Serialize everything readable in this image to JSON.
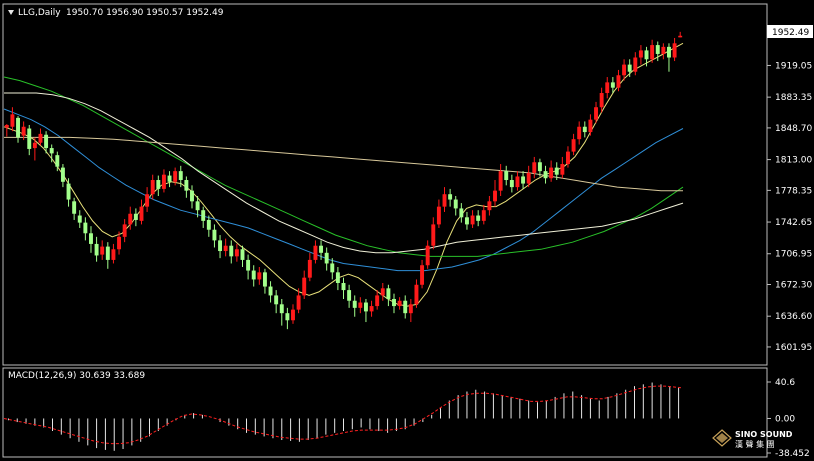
{
  "header": {
    "symbol_label": "LLG,Daily",
    "ohlc": "1950.70 1956.90 1950.57 1952.49"
  },
  "price_axis": {
    "current_price": "1952.49",
    "ticks": [
      "1919.05",
      "1883.35",
      "1848.70",
      "1813.00",
      "1778.35",
      "1742.65",
      "1706.95",
      "1672.30",
      "1636.60",
      "1601.95"
    ]
  },
  "macd_panel": {
    "label": "MACD(12,26,9) 30.639 33.689",
    "ticks": [
      "40.6",
      "0.00",
      "-38.452"
    ]
  },
  "watermark": {
    "line1": "SINO SOUND",
    "line2": "漢 聲 集 團"
  },
  "colors": {
    "bull": "#ff1a1a",
    "bear": "#a3ff8c",
    "ma1": "#e8e07a",
    "ma2": "#2f8fd8",
    "ma3": "#29c029",
    "ma4": "#f0f0d8",
    "ma5": "#d8c89a",
    "macd_hist": "#e6e6e6",
    "macd_signal": "#ff2020"
  },
  "chart_data": {
    "type": "candlestick",
    "title": "LLG,Daily",
    "ylim": [
      1585,
      1968
    ],
    "candles": [
      [
        1849,
        1852,
        1839,
        1853
      ],
      [
        1850,
        1864,
        1845,
        1872
      ],
      [
        1860,
        1838,
        1832,
        1862
      ],
      [
        1840,
        1850,
        1835,
        1856
      ],
      [
        1848,
        1825,
        1818,
        1852
      ],
      [
        1826,
        1832,
        1812,
        1838
      ],
      [
        1832,
        1842,
        1829,
        1848
      ],
      [
        1841,
        1826,
        1820,
        1845
      ],
      [
        1826,
        1820,
        1810,
        1830
      ],
      [
        1818,
        1805,
        1800,
        1822
      ],
      [
        1804,
        1788,
        1782,
        1808
      ],
      [
        1786,
        1768,
        1760,
        1792
      ],
      [
        1766,
        1752,
        1745,
        1770
      ],
      [
        1750,
        1742,
        1736,
        1756
      ],
      [
        1742,
        1730,
        1722,
        1748
      ],
      [
        1730,
        1718,
        1708,
        1738
      ],
      [
        1718,
        1705,
        1698,
        1726
      ],
      [
        1706,
        1715,
        1700,
        1722
      ],
      [
        1715,
        1700,
        1690,
        1720
      ],
      [
        1700,
        1712,
        1696,
        1718
      ],
      [
        1712,
        1726,
        1706,
        1732
      ],
      [
        1726,
        1740,
        1720,
        1746
      ],
      [
        1740,
        1752,
        1734,
        1760
      ],
      [
        1752,
        1745,
        1738,
        1758
      ],
      [
        1744,
        1760,
        1740,
        1768
      ],
      [
        1760,
        1774,
        1754,
        1782
      ],
      [
        1774,
        1790,
        1768,
        1796
      ],
      [
        1790,
        1780,
        1772,
        1795
      ],
      [
        1780,
        1796,
        1776,
        1802
      ],
      [
        1795,
        1788,
        1782,
        1800
      ],
      [
        1788,
        1800,
        1784,
        1804
      ],
      [
        1800,
        1790,
        1782,
        1806
      ],
      [
        1790,
        1778,
        1770,
        1794
      ],
      [
        1778,
        1766,
        1758,
        1784
      ],
      [
        1766,
        1756,
        1748,
        1772
      ],
      [
        1756,
        1744,
        1736,
        1760
      ],
      [
        1745,
        1734,
        1726,
        1750
      ],
      [
        1734,
        1722,
        1714,
        1740
      ],
      [
        1722,
        1710,
        1702,
        1728
      ],
      [
        1710,
        1716,
        1704,
        1724
      ],
      [
        1716,
        1704,
        1696,
        1722
      ],
      [
        1704,
        1712,
        1698,
        1718
      ],
      [
        1712,
        1700,
        1692,
        1716
      ],
      [
        1700,
        1688,
        1678,
        1706
      ],
      [
        1688,
        1678,
        1670,
        1694
      ],
      [
        1678,
        1686,
        1672,
        1692
      ],
      [
        1686,
        1670,
        1662,
        1690
      ],
      [
        1670,
        1660,
        1652,
        1676
      ],
      [
        1660,
        1650,
        1640,
        1666
      ],
      [
        1650,
        1640,
        1626,
        1656
      ],
      [
        1640,
        1632,
        1622,
        1646
      ],
      [
        1632,
        1644,
        1628,
        1650
      ],
      [
        1644,
        1660,
        1640,
        1668
      ],
      [
        1660,
        1680,
        1656,
        1688
      ],
      [
        1680,
        1700,
        1676,
        1708
      ],
      [
        1700,
        1716,
        1696,
        1722
      ],
      [
        1716,
        1708,
        1700,
        1722
      ],
      [
        1708,
        1696,
        1688,
        1714
      ],
      [
        1696,
        1686,
        1678,
        1702
      ],
      [
        1686,
        1674,
        1666,
        1692
      ],
      [
        1674,
        1666,
        1656,
        1680
      ],
      [
        1666,
        1654,
        1646,
        1672
      ],
      [
        1654,
        1646,
        1636,
        1660
      ],
      [
        1646,
        1652,
        1640,
        1658
      ],
      [
        1652,
        1642,
        1630,
        1656
      ],
      [
        1642,
        1648,
        1636,
        1654
      ],
      [
        1648,
        1660,
        1644,
        1666
      ],
      [
        1660,
        1668,
        1654,
        1674
      ],
      [
        1668,
        1656,
        1648,
        1672
      ],
      [
        1656,
        1648,
        1640,
        1662
      ],
      [
        1648,
        1654,
        1644,
        1658
      ],
      [
        1654,
        1640,
        1634,
        1660
      ],
      [
        1640,
        1650,
        1630,
        1656
      ],
      [
        1650,
        1672,
        1646,
        1678
      ],
      [
        1672,
        1694,
        1668,
        1700
      ],
      [
        1694,
        1716,
        1690,
        1722
      ],
      [
        1716,
        1740,
        1712,
        1748
      ],
      [
        1740,
        1760,
        1736,
        1768
      ],
      [
        1760,
        1774,
        1754,
        1782
      ],
      [
        1774,
        1768,
        1760,
        1780
      ],
      [
        1768,
        1758,
        1750,
        1772
      ],
      [
        1758,
        1748,
        1742,
        1764
      ],
      [
        1748,
        1740,
        1734,
        1754
      ],
      [
        1740,
        1750,
        1736,
        1756
      ],
      [
        1750,
        1744,
        1738,
        1756
      ],
      [
        1744,
        1756,
        1740,
        1762
      ],
      [
        1756,
        1766,
        1750,
        1772
      ],
      [
        1766,
        1778,
        1760,
        1790
      ],
      [
        1778,
        1800,
        1772,
        1808
      ],
      [
        1800,
        1790,
        1784,
        1806
      ],
      [
        1790,
        1782,
        1776,
        1796
      ],
      [
        1782,
        1794,
        1778,
        1800
      ],
      [
        1794,
        1786,
        1780,
        1800
      ],
      [
        1786,
        1798,
        1782,
        1806
      ],
      [
        1798,
        1810,
        1792,
        1816
      ],
      [
        1810,
        1800,
        1794,
        1814
      ],
      [
        1800,
        1792,
        1786,
        1806
      ],
      [
        1792,
        1804,
        1788,
        1812
      ],
      [
        1804,
        1796,
        1790,
        1810
      ],
      [
        1796,
        1808,
        1792,
        1816
      ],
      [
        1808,
        1822,
        1804,
        1828
      ],
      [
        1822,
        1836,
        1818,
        1842
      ],
      [
        1836,
        1850,
        1830,
        1856
      ],
      [
        1850,
        1844,
        1838,
        1856
      ],
      [
        1844,
        1858,
        1840,
        1864
      ],
      [
        1858,
        1872,
        1854,
        1878
      ],
      [
        1872,
        1888,
        1866,
        1894
      ],
      [
        1888,
        1900,
        1882,
        1906
      ],
      [
        1900,
        1894,
        1888,
        1906
      ],
      [
        1894,
        1908,
        1890,
        1914
      ],
      [
        1908,
        1920,
        1902,
        1926
      ],
      [
        1920,
        1912,
        1906,
        1926
      ],
      [
        1912,
        1928,
        1908,
        1934
      ],
      [
        1928,
        1936,
        1920,
        1942
      ],
      [
        1936,
        1926,
        1918,
        1940
      ],
      [
        1926,
        1942,
        1922,
        1948
      ],
      [
        1942,
        1932,
        1924,
        1946
      ],
      [
        1932,
        1940,
        1926,
        1944
      ],
      [
        1940,
        1928,
        1912,
        1944
      ],
      [
        1928,
        1944,
        1924,
        1950
      ],
      [
        1950.7,
        1952.49,
        1950.57,
        1956.9
      ]
    ],
    "moving_averages": [
      {
        "color": "#e8e07a",
        "values": [
          1850,
          1846,
          1842,
          1836,
          1826,
          1812,
          1796,
          1778,
          1760,
          1744,
          1732,
          1726,
          1730,
          1742,
          1758,
          1774,
          1784,
          1788,
          1786,
          1778,
          1766,
          1752,
          1738,
          1726,
          1716,
          1708,
          1700,
          1690,
          1680,
          1670,
          1664,
          1660,
          1664,
          1672,
          1680,
          1684,
          1680,
          1672,
          1664,
          1656,
          1650,
          1648,
          1650,
          1664,
          1690,
          1720,
          1744,
          1758,
          1762,
          1760,
          1760,
          1766,
          1774,
          1782,
          1790,
          1796,
          1800,
          1806,
          1816,
          1832,
          1852,
          1872,
          1890,
          1904,
          1914,
          1920,
          1926,
          1932,
          1938,
          1944
        ]
      },
      {
        "color": "#2f8fd8",
        "values": [
          1870,
          1864,
          1858,
          1850,
          1840,
          1828,
          1816,
          1804,
          1794,
          1784,
          1776,
          1768,
          1762,
          1756,
          1752,
          1748,
          1744,
          1740,
          1736,
          1730,
          1724,
          1718,
          1712,
          1706,
          1700,
          1696,
          1694,
          1692,
          1690,
          1688,
          1688,
          1688,
          1690,
          1692,
          1696,
          1700,
          1706,
          1714,
          1722,
          1732,
          1744,
          1756,
          1768,
          1780,
          1792,
          1802,
          1812,
          1822,
          1832,
          1840,
          1848
        ]
      },
      {
        "color": "#29c029",
        "values": [
          1906,
          1902,
          1896,
          1890,
          1882,
          1874,
          1864,
          1854,
          1844,
          1834,
          1824,
          1814,
          1804,
          1794,
          1784,
          1776,
          1768,
          1760,
          1752,
          1744,
          1736,
          1728,
          1722,
          1716,
          1712,
          1708,
          1706,
          1704,
          1704,
          1704,
          1704,
          1706,
          1708,
          1710,
          1712,
          1716,
          1720,
          1726,
          1732,
          1740,
          1748,
          1758,
          1770,
          1782
        ]
      },
      {
        "color": "#f0f0d8",
        "values": [
          1888,
          1888,
          1888,
          1886,
          1882,
          1876,
          1868,
          1858,
          1848,
          1838,
          1826,
          1814,
          1800,
          1788,
          1776,
          1764,
          1754,
          1744,
          1736,
          1728,
          1720,
          1714,
          1710,
          1708,
          1708,
          1710,
          1712,
          1716,
          1720,
          1722,
          1724,
          1726,
          1728,
          1730,
          1732,
          1734,
          1736,
          1738,
          1742,
          1746,
          1752,
          1758,
          1764
        ]
      },
      {
        "color": "#d8c89a",
        "values": [
          1838,
          1838,
          1838,
          1838,
          1837,
          1836,
          1834,
          1832,
          1830,
          1828,
          1826,
          1824,
          1822,
          1820,
          1818,
          1816,
          1814,
          1812,
          1810,
          1808,
          1806,
          1804,
          1802,
          1800,
          1798,
          1794,
          1790,
          1786,
          1782,
          1780,
          1778,
          1778
        ]
      }
    ],
    "macd": {
      "ylim": [
        -38.452,
        40.6
      ],
      "histogram": [
        -2,
        -4,
        -6,
        -8,
        -10,
        -14,
        -18,
        -22,
        -26,
        -30,
        -33,
        -35,
        -36,
        -34,
        -30,
        -26,
        -20,
        -14,
        -8,
        -2,
        4,
        6,
        4,
        0,
        -4,
        -8,
        -12,
        -16,
        -18,
        -20,
        -22,
        -24,
        -25,
        -26,
        -24,
        -22,
        -18,
        -16,
        -14,
        -12,
        -10,
        -12,
        -14,
        -16,
        -14,
        -12,
        -8,
        -4,
        4,
        12,
        20,
        26,
        30,
        32,
        30,
        28,
        26,
        24,
        22,
        20,
        18,
        20,
        24,
        28,
        30,
        26,
        22,
        20,
        24,
        28,
        32,
        36,
        38,
        40,
        38,
        36,
        34
      ],
      "signal": [
        0,
        -2,
        -4,
        -6,
        -8,
        -10,
        -13,
        -16,
        -19,
        -22,
        -25,
        -27,
        -28,
        -28,
        -27,
        -24,
        -20,
        -14,
        -8,
        -2,
        3,
        5,
        4,
        2,
        -1,
        -5,
        -9,
        -12,
        -15,
        -17,
        -19,
        -21,
        -22,
        -23,
        -23,
        -22,
        -20,
        -18,
        -16,
        -14,
        -13,
        -13,
        -13,
        -13,
        -12,
        -10,
        -6,
        0,
        6,
        13,
        19,
        24,
        27,
        28,
        28,
        27,
        25,
        23,
        21,
        19,
        19,
        20,
        22,
        24,
        24,
        23,
        22,
        22,
        24,
        27,
        30,
        33,
        35,
        36,
        36,
        35,
        34
      ]
    }
  }
}
